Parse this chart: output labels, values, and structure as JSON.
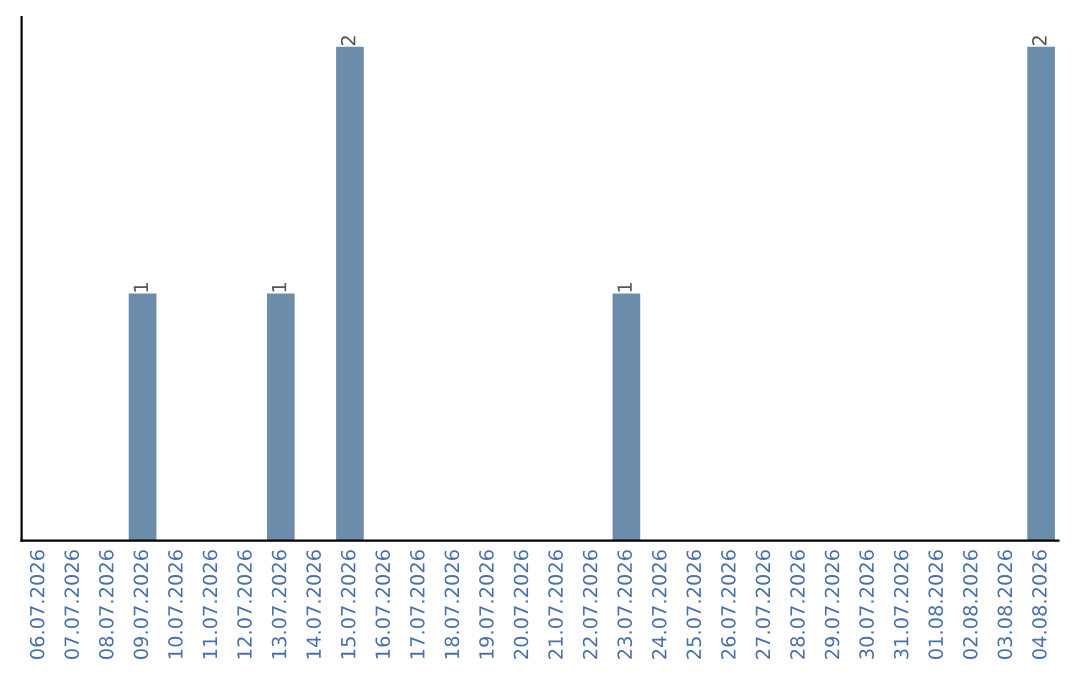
{
  "chart_data": {
    "type": "bar",
    "categories": [
      "06.07.2026",
      "07.07.2026",
      "08.07.2026",
      "09.07.2026",
      "10.07.2026",
      "11.07.2026",
      "12.07.2026",
      "13.07.2026",
      "14.07.2026",
      "15.07.2026",
      "16.07.2026",
      "17.07.2026",
      "18.07.2026",
      "19.07.2026",
      "20.07.2026",
      "21.07.2026",
      "22.07.2026",
      "23.07.2026",
      "24.07.2026",
      "25.07.2026",
      "26.07.2026",
      "27.07.2026",
      "28.07.2026",
      "29.07.2026",
      "30.07.2026",
      "31.07.2026",
      "01.08.2026",
      "02.08.2026",
      "03.08.2026",
      "04.08.2026"
    ],
    "values": [
      0,
      0,
      0,
      1,
      0,
      0,
      0,
      1,
      0,
      2,
      0,
      0,
      0,
      0,
      0,
      0,
      0,
      1,
      0,
      0,
      0,
      0,
      0,
      0,
      0,
      0,
      0,
      0,
      0,
      2
    ],
    "value_labels": [
      null,
      null,
      null,
      "1",
      null,
      null,
      null,
      "1",
      null,
      "2",
      null,
      null,
      null,
      null,
      null,
      null,
      null,
      "1",
      null,
      null,
      null,
      null,
      null,
      null,
      null,
      null,
      null,
      null,
      null,
      "2"
    ],
    "color": "#6b8cab",
    "grid": false,
    "legend": false
  }
}
